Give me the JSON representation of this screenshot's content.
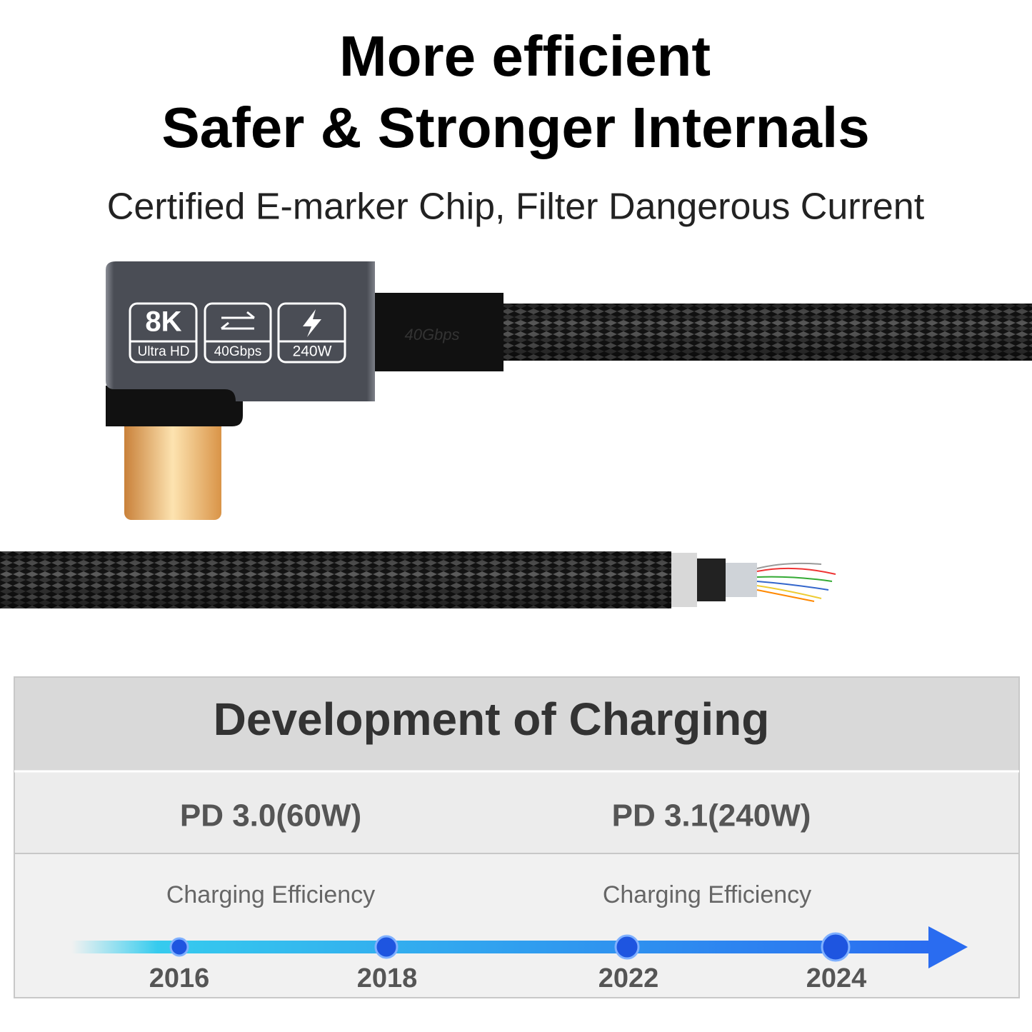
{
  "header": {
    "title_line1": "More efficient",
    "title_line2": "Safer & Stronger Internals",
    "subtitle": "Certified E-marker Chip, Filter Dangerous Current"
  },
  "product": {
    "badges": [
      "8K",
      "Ultra HD",
      "40Gbps",
      "240W"
    ],
    "cable_print": "40Gbps"
  },
  "panel": {
    "title": "Development of Charging",
    "standards": [
      {
        "label": "PD 3.0(60W)",
        "caption": "Charging Efficiency"
      },
      {
        "label": "PD 3.1(240W)",
        "caption": "Charging Efficiency"
      }
    ],
    "timeline": [
      "2016",
      "2018",
      "2022",
      "2024"
    ]
  }
}
